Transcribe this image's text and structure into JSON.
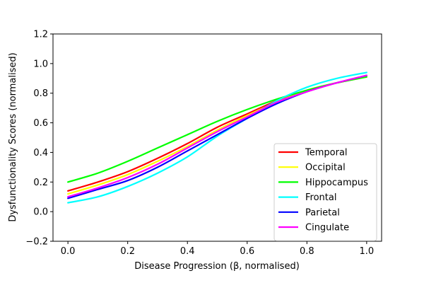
{
  "chart_data": {
    "type": "line",
    "title": "",
    "xlabel": "Disease Progression (β, normalised)",
    "ylabel": "Dysfunctionality Scores (normalised)",
    "xlim": [
      -0.05,
      1.05
    ],
    "ylim": [
      -0.2,
      1.2
    ],
    "xticks": [
      0.0,
      0.2,
      0.4,
      0.6,
      0.8,
      1.0
    ],
    "yticks": [
      -0.2,
      0.0,
      0.2,
      0.4,
      0.6,
      0.8,
      1.0,
      1.2
    ],
    "xtick_labels": [
      "0.0",
      "0.2",
      "0.4",
      "0.6",
      "0.8",
      "1.0"
    ],
    "ytick_labels": [
      "−0.2",
      "0.0",
      "0.2",
      "0.4",
      "0.6",
      "0.8",
      "1.0",
      "1.2"
    ],
    "grid": false,
    "legend_position": "lower-right",
    "x": [
      0.0,
      0.1,
      0.2,
      0.3,
      0.4,
      0.5,
      0.6,
      0.7,
      0.8,
      0.9,
      1.0
    ],
    "series": [
      {
        "name": "Temporal",
        "color": "#ff0000",
        "values": [
          0.14,
          0.2,
          0.27,
          0.36,
          0.46,
          0.57,
          0.66,
          0.75,
          0.82,
          0.87,
          0.91
        ]
      },
      {
        "name": "Occipital",
        "color": "#ffff00",
        "values": [
          0.12,
          0.18,
          0.25,
          0.34,
          0.44,
          0.55,
          0.65,
          0.74,
          0.82,
          0.87,
          0.91
        ]
      },
      {
        "name": "Hippocampus",
        "color": "#00ff00",
        "values": [
          0.2,
          0.26,
          0.34,
          0.43,
          0.52,
          0.61,
          0.69,
          0.76,
          0.82,
          0.87,
          0.91
        ]
      },
      {
        "name": "Frontal",
        "color": "#00ffff",
        "values": [
          0.06,
          0.1,
          0.17,
          0.26,
          0.37,
          0.51,
          0.63,
          0.75,
          0.84,
          0.9,
          0.94
        ]
      },
      {
        "name": "Parietal",
        "color": "#0000ff",
        "values": [
          0.09,
          0.15,
          0.21,
          0.3,
          0.41,
          0.52,
          0.63,
          0.73,
          0.81,
          0.87,
          0.92
        ]
      },
      {
        "name": "Cingulate",
        "color": "#ff00ff",
        "values": [
          0.1,
          0.16,
          0.23,
          0.32,
          0.43,
          0.54,
          0.64,
          0.74,
          0.81,
          0.87,
          0.92
        ]
      }
    ]
  }
}
